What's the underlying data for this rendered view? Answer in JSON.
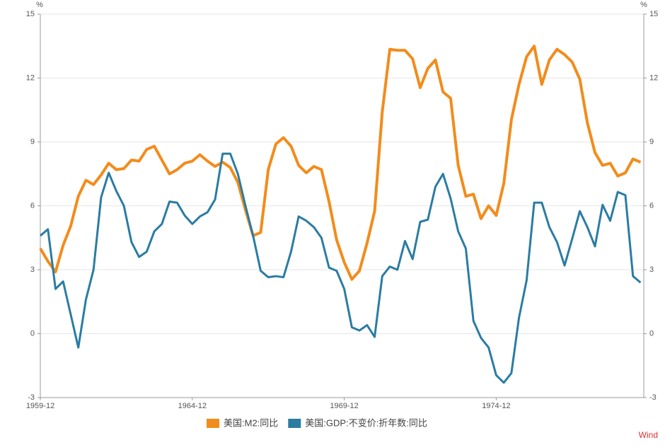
{
  "chart_data": {
    "type": "line",
    "y_label": "%",
    "y2_label": "%",
    "x": [
      "1959-12",
      "1960-03",
      "1960-06",
      "1960-09",
      "1960-12",
      "1961-03",
      "1961-06",
      "1961-09",
      "1961-12",
      "1962-03",
      "1962-06",
      "1962-09",
      "1962-12",
      "1963-03",
      "1963-06",
      "1963-09",
      "1963-12",
      "1964-03",
      "1964-06",
      "1964-09",
      "1964-12",
      "1965-03",
      "1965-06",
      "1965-09",
      "1965-12",
      "1966-03",
      "1966-06",
      "1966-09",
      "1966-12",
      "1967-03",
      "1967-06",
      "1967-09",
      "1967-12",
      "1968-03",
      "1968-06",
      "1968-09",
      "1968-12",
      "1969-03",
      "1969-06",
      "1969-09",
      "1969-12",
      "1970-03",
      "1970-06",
      "1970-09",
      "1970-12",
      "1971-03",
      "1971-06",
      "1971-09",
      "1971-12",
      "1972-03",
      "1972-06",
      "1972-09",
      "1972-12",
      "1973-03",
      "1973-06",
      "1973-09",
      "1973-12",
      "1974-03",
      "1974-06",
      "1974-09",
      "1974-12",
      "1975-03",
      "1975-06",
      "1975-09",
      "1975-12",
      "1976-03",
      "1976-06",
      "1976-09",
      "1976-12",
      "1977-03",
      "1977-06",
      "1977-09",
      "1977-12",
      "1978-03",
      "1978-06",
      "1978-09",
      "1978-12",
      "1979-03",
      "1979-06",
      "1979-09"
    ],
    "xticks": [
      "1959-12",
      "1964-12",
      "1969-12",
      "1974-12"
    ],
    "series": [
      {
        "name": "美国:M2:同比",
        "color": "#f28c1c",
        "values": [
          4.0,
          3.4,
          2.9,
          4.15,
          5.05,
          6.45,
          7.2,
          7.0,
          7.45,
          8.0,
          7.7,
          7.75,
          8.15,
          8.1,
          8.65,
          8.8,
          8.15,
          7.5,
          7.7,
          8.0,
          8.1,
          8.4,
          8.1,
          7.85,
          8.05,
          7.8,
          7.1,
          5.8,
          4.6,
          4.75,
          7.7,
          8.9,
          9.2,
          8.8,
          7.9,
          7.55,
          7.85,
          7.7,
          6.2,
          4.4,
          3.35,
          2.55,
          2.95,
          4.25,
          5.75,
          10.4,
          13.35,
          13.3,
          13.3,
          12.9,
          11.55,
          12.45,
          12.85,
          11.35,
          11.05,
          7.9,
          6.45,
          6.55,
          5.4,
          6.0,
          5.55,
          7.05,
          10.05,
          11.7,
          13.0,
          13.5,
          11.7,
          12.85,
          13.35,
          13.1,
          12.75,
          11.95,
          9.9,
          8.5,
          7.9,
          8.0,
          7.4,
          7.55,
          8.2,
          8.05
        ]
      },
      {
        "name": "美国:GDP:不变价:折年数:同比",
        "color": "#2a7ca3",
        "values": [
          4.6,
          4.9,
          2.1,
          2.45,
          0.9,
          -0.65,
          1.6,
          3.0,
          6.4,
          7.55,
          6.7,
          6.0,
          4.3,
          3.6,
          3.85,
          4.8,
          5.15,
          6.2,
          6.15,
          5.55,
          5.15,
          5.5,
          5.7,
          6.3,
          8.45,
          8.45,
          7.5,
          6.0,
          4.6,
          2.95,
          2.65,
          2.7,
          2.65,
          3.85,
          5.5,
          5.3,
          5.0,
          4.5,
          3.1,
          2.95,
          2.1,
          0.3,
          0.15,
          0.4,
          -0.15,
          2.7,
          3.15,
          3.0,
          4.35,
          3.5,
          5.25,
          5.35,
          6.9,
          7.5,
          6.35,
          4.8,
          4.0,
          0.6,
          -0.2,
          -0.65,
          -1.95,
          -2.3,
          -1.85,
          0.75,
          2.5,
          6.15,
          6.15,
          5.0,
          4.3,
          3.2,
          4.45,
          5.75,
          5.0,
          4.1,
          6.05,
          5.3,
          6.65,
          6.5,
          2.7,
          2.4
        ]
      }
    ],
    "ylim": [
      -3,
      15
    ],
    "yticks": [
      -3,
      0,
      3,
      6,
      9,
      12,
      15
    ],
    "y2lim": [
      -3,
      15
    ],
    "y2ticks": [
      -3,
      0,
      3,
      6,
      9,
      12,
      15
    ],
    "grid": true,
    "legend": "bottom",
    "source": "Wind"
  }
}
